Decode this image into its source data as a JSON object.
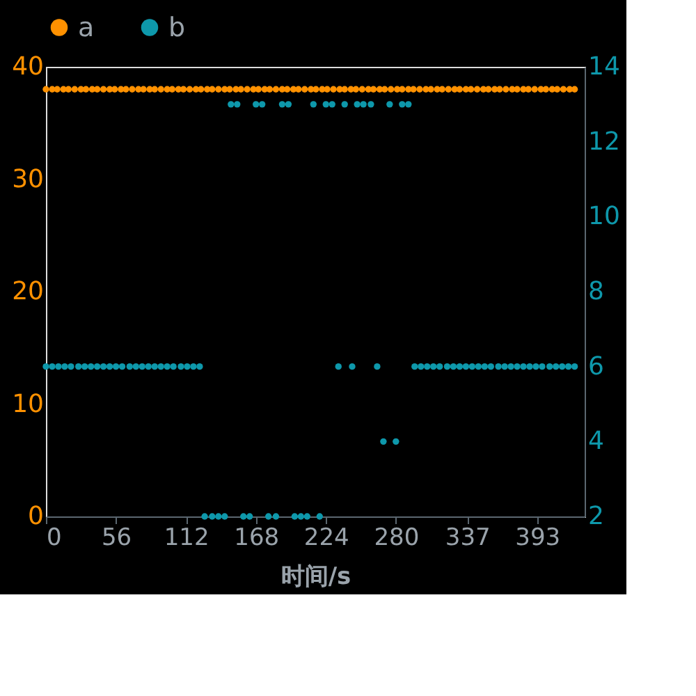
{
  "chart_data": {
    "type": "scatter",
    "xlabel": "时间/s",
    "xlim": [
      0,
      431
    ],
    "xticks": [
      0,
      56,
      112,
      168,
      224,
      280,
      337,
      393
    ],
    "ylim": [
      0,
      40
    ],
    "yticks": [
      0,
      10,
      20,
      30,
      40
    ],
    "y2lim": [
      2,
      14
    ],
    "y2ticks": [
      2,
      4,
      6,
      8,
      10,
      12,
      14
    ],
    "grid": false,
    "legend": "top",
    "marker": "circle",
    "series": [
      {
        "name": "a",
        "color": "#ff9100",
        "x": [
          0,
          5,
          9,
          14,
          18,
          23,
          28,
          32,
          37,
          41,
          46,
          51,
          55,
          60,
          64,
          69,
          74,
          78,
          83,
          87,
          92,
          97,
          101,
          106,
          110,
          115,
          120,
          124,
          129,
          133,
          138,
          143,
          147,
          152,
          156,
          161,
          166,
          170,
          175,
          179,
          184,
          189,
          193,
          198,
          202,
          207,
          212,
          216,
          221,
          225,
          230,
          235,
          239,
          244,
          248,
          253,
          258,
          262,
          267,
          271,
          276,
          281,
          285,
          290,
          294,
          299,
          304,
          308,
          313,
          317,
          322,
          327,
          331,
          336,
          340,
          345,
          350,
          354,
          359,
          363,
          368,
          373,
          377,
          382,
          386,
          391,
          396,
          400,
          405,
          409,
          414,
          419,
          423
        ],
        "values": [
          38,
          38,
          38,
          38,
          38,
          38,
          38,
          38,
          38,
          38,
          38,
          38,
          38,
          38,
          38,
          38,
          38,
          38,
          38,
          38,
          38,
          38,
          38,
          38,
          38,
          38,
          38,
          38,
          38,
          38,
          38,
          38,
          38,
          38,
          38,
          38,
          38,
          38,
          38,
          38,
          38,
          38,
          38,
          38,
          38,
          38,
          38,
          38,
          38,
          38,
          38,
          38,
          38,
          38,
          38,
          38,
          38,
          38,
          38,
          38,
          38,
          38,
          38,
          38,
          38,
          38,
          38,
          38,
          38,
          38,
          38,
          38,
          38,
          38,
          38,
          38,
          38,
          38,
          38,
          38,
          38,
          38,
          38,
          38,
          38,
          38,
          38,
          38,
          38,
          38,
          38,
          38,
          38
        ]
      },
      {
        "name": "b",
        "color": "#0e98ab",
        "axis": "y2",
        "x": [
          0,
          5,
          10,
          15,
          20,
          26,
          31,
          36,
          41,
          46,
          51,
          56,
          61,
          67,
          72,
          77,
          82,
          87,
          92,
          97,
          102,
          108,
          113,
          118,
          123,
          127,
          133,
          138,
          143,
          148,
          153,
          158,
          163,
          168,
          173,
          178,
          184,
          189,
          194,
          199,
          204,
          209,
          214,
          219,
          224,
          229,
          234,
          239,
          245,
          249,
          254,
          260,
          265,
          270,
          275,
          280,
          285,
          290,
          295,
          300,
          305,
          310,
          315,
          321,
          326,
          331,
          336,
          341,
          346,
          351,
          356,
          362,
          367,
          372,
          377,
          382,
          387,
          392,
          397,
          403,
          408,
          413,
          418,
          423
        ],
        "values": [
          6,
          6,
          6,
          6,
          6,
          6,
          6,
          6,
          6,
          6,
          6,
          6,
          6,
          6,
          6,
          6,
          6,
          6,
          6,
          6,
          6,
          6,
          6,
          6,
          6,
          2,
          2,
          2,
          2,
          13,
          13,
          2,
          2,
          13,
          13,
          2,
          2,
          13,
          13,
          2,
          2,
          2,
          13,
          2,
          13,
          13,
          6,
          13,
          6,
          13,
          13,
          13,
          6,
          4,
          13,
          4,
          13,
          13,
          6,
          6,
          6,
          6,
          6,
          6,
          6,
          6,
          6,
          6,
          6,
          6,
          6,
          6,
          6,
          6,
          6,
          6,
          6,
          6,
          6,
          6,
          6,
          6,
          6,
          6
        ]
      }
    ]
  }
}
